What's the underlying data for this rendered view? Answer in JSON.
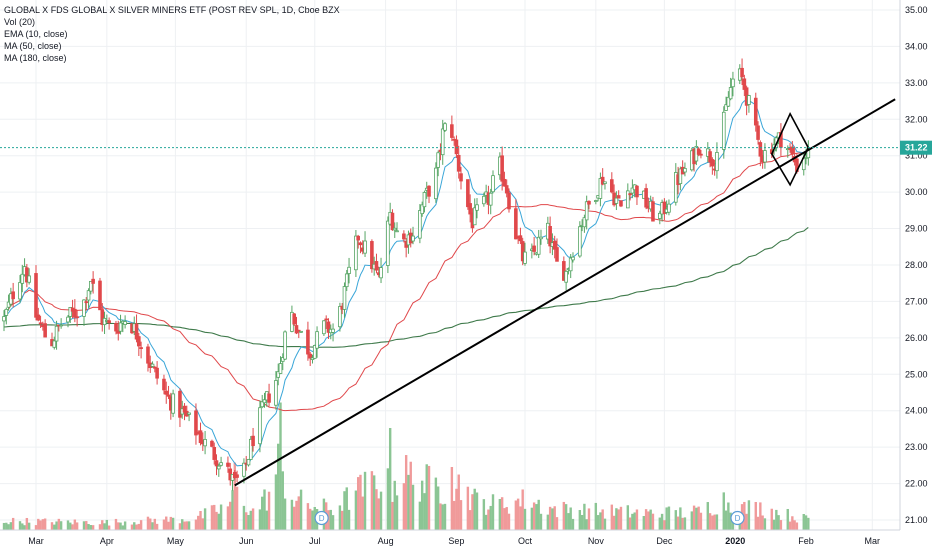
{
  "legend": {
    "title": "GLOBAL X FDS GLOBAL X SILVER MINERS ETF (POST REV SPL, 1D, Cboe BZX",
    "indicators": [
      "Vol (20)",
      "EMA (10, close)",
      "MA (50, close)",
      "MA (180, close)"
    ]
  },
  "price_label": "31.22",
  "colors": {
    "up": "#56a564",
    "down": "#e0484b",
    "ema10": "#3aa6d8",
    "ma50": "#e0484b",
    "ma180": "#3f7a4b",
    "vol_up": "#8bc594",
    "vol_down": "#f09a9a",
    "price_line": "#26a69a",
    "axis_text": "#131722",
    "grid": "#eef0f3"
  },
  "chart_data": {
    "type": "candlestick",
    "y_ticks": [
      "21.00",
      "22.00",
      "23.00",
      "24.00",
      "25.00",
      "26.00",
      "27.00",
      "28.00",
      "29.00",
      "30.00",
      "31.00",
      "32.00",
      "33.00",
      "34.00",
      "35.00"
    ],
    "ylim": [
      20.75,
      35.1
    ],
    "x_ticks": [
      {
        "label": "Mar",
        "day": 0
      },
      {
        "label": "Apr",
        "day": 31
      },
      {
        "label": "May",
        "day": 61
      },
      {
        "label": "Jun",
        "day": 92
      },
      {
        "label": "Jul",
        "day": 122
      },
      {
        "label": "Aug",
        "day": 153
      },
      {
        "label": "Sep",
        "day": 184
      },
      {
        "label": "Oct",
        "day": 214
      },
      {
        "label": "Nov",
        "day": 245
      },
      {
        "label": "Dec",
        "day": 275
      },
      {
        "label": "2020",
        "day": 306,
        "bold": true
      },
      {
        "label": "Feb",
        "day": 337
      },
      {
        "label": "Mar",
        "day": 366
      }
    ],
    "price_anchors": [
      [
        -14,
        26.5
      ],
      [
        -8,
        27.6
      ],
      [
        -5,
        28.0
      ],
      [
        0,
        26.6
      ],
      [
        6,
        25.8
      ],
      [
        12,
        26.5
      ],
      [
        20,
        26.8
      ],
      [
        24,
        27.6
      ],
      [
        29,
        26.5
      ],
      [
        34,
        26.2
      ],
      [
        40,
        26.6
      ],
      [
        45,
        26.0
      ],
      [
        50,
        25.3
      ],
      [
        57,
        24.4
      ],
      [
        66,
        23.8
      ],
      [
        74,
        23.1
      ],
      [
        82,
        22.5
      ],
      [
        87,
        22.0
      ],
      [
        91,
        22.3
      ],
      [
        96,
        23.5
      ],
      [
        101,
        24.3
      ],
      [
        106,
        25.0
      ],
      [
        111,
        26.8
      ],
      [
        115,
        26.2
      ],
      [
        120,
        25.6
      ],
      [
        126,
        26.3
      ],
      [
        131,
        26.2
      ],
      [
        136,
        27.5
      ],
      [
        141,
        28.8
      ],
      [
        146,
        28.2
      ],
      [
        150,
        27.6
      ],
      [
        155,
        29.4
      ],
      [
        160,
        28.6
      ],
      [
        165,
        28.9
      ],
      [
        170,
        29.8
      ],
      [
        175,
        30.5
      ],
      [
        178,
        31.6
      ],
      [
        181,
        32.0
      ],
      [
        184,
        31.0
      ],
      [
        188,
        29.8
      ],
      [
        191,
        29.2
      ],
      [
        195,
        29.6
      ],
      [
        199,
        29.9
      ],
      [
        202,
        30.9
      ],
      [
        206,
        30.1
      ],
      [
        209,
        29.1
      ],
      [
        213,
        28.2
      ],
      [
        216,
        28.1
      ],
      [
        220,
        28.6
      ],
      [
        224,
        28.9
      ],
      [
        228,
        28.0
      ],
      [
        232,
        27.8
      ],
      [
        236,
        28.7
      ],
      [
        240,
        29.4
      ],
      [
        244,
        29.9
      ],
      [
        248,
        30.4
      ],
      [
        252,
        30.0
      ],
      [
        256,
        29.6
      ],
      [
        260,
        30.2
      ],
      [
        264,
        30.0
      ],
      [
        268,
        29.6
      ],
      [
        272,
        29.2
      ],
      [
        276,
        29.7
      ],
      [
        280,
        30.3
      ],
      [
        284,
        30.6
      ],
      [
        287,
        30.9
      ],
      [
        290,
        31.3
      ],
      [
        293,
        31.1
      ],
      [
        297,
        30.9
      ],
      [
        300,
        31.6
      ],
      [
        303,
        32.6
      ],
      [
        306,
        33.3
      ],
      [
        309,
        33.1
      ],
      [
        312,
        32.4
      ],
      [
        315,
        31.6
      ],
      [
        318,
        31.0
      ],
      [
        322,
        31.3
      ],
      [
        326,
        31.5
      ],
      [
        330,
        31.1
      ],
      [
        334,
        30.6
      ],
      [
        336,
        31.0
      ],
      [
        338,
        31.1
      ]
    ],
    "volume_anchors": [
      [
        -14,
        0.06
      ],
      [
        30,
        0.05
      ],
      [
        60,
        0.07
      ],
      [
        70,
        0.08
      ],
      [
        83,
        0.15
      ],
      [
        88,
        0.23
      ],
      [
        95,
        0.12
      ],
      [
        103,
        0.25
      ],
      [
        106,
        0.45
      ],
      [
        112,
        0.22
      ],
      [
        120,
        0.16
      ],
      [
        130,
        0.14
      ],
      [
        141,
        0.26
      ],
      [
        150,
        0.33
      ],
      [
        155,
        0.28
      ],
      [
        160,
        0.38
      ],
      [
        166,
        0.34
      ],
      [
        176,
        0.28
      ],
      [
        186,
        0.3
      ],
      [
        192,
        0.2
      ],
      [
        200,
        0.17
      ],
      [
        215,
        0.2
      ],
      [
        226,
        0.14
      ],
      [
        240,
        0.13
      ],
      [
        256,
        0.12
      ],
      [
        270,
        0.11
      ],
      [
        290,
        0.12
      ],
      [
        301,
        0.2
      ],
      [
        306,
        0.14
      ],
      [
        316,
        0.15
      ],
      [
        326,
        0.11
      ],
      [
        338,
        0.07
      ]
    ],
    "volume_spikes": [
      [
        6,
        0.46
      ],
      [
        87,
        0.45
      ],
      [
        107,
        0.85
      ],
      [
        155,
        0.68
      ],
      [
        160,
        0.95
      ],
      [
        182,
        0.42
      ]
    ],
    "volume_scale_max": 1.0,
    "trendline": {
      "from": {
        "day": 87,
        "price": 21.95
      },
      "to": {
        "day": 376,
        "price": 32.55
      }
    },
    "diamond": {
      "top": {
        "day": 330,
        "price": 32.15
      },
      "right": {
        "day": 338,
        "price": 31.22
      },
      "bottom": {
        "day": 330,
        "price": 30.2
      },
      "left": {
        "day": 322,
        "price": 31.05
      }
    },
    "dividend_markers": [
      {
        "day": 125,
        "label": "D"
      },
      {
        "day": 307,
        "label": "D"
      }
    ],
    "last_price": 31.22
  }
}
